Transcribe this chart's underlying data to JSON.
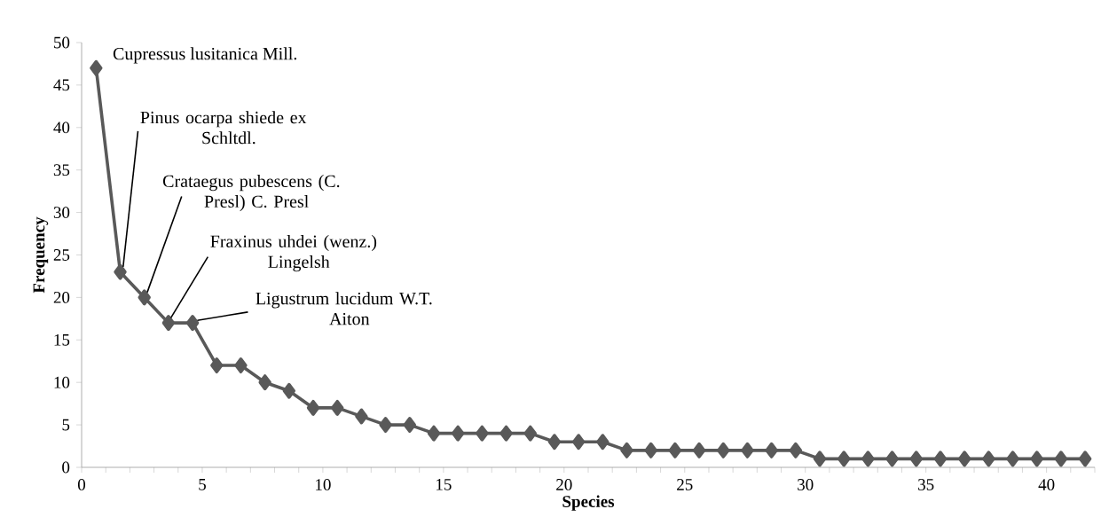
{
  "chart_data": {
    "type": "line",
    "xlabel": "Species",
    "ylabel": "Frequency",
    "color": "#595959",
    "marker": "diamond",
    "line_style": "solid",
    "x": [
      0.6,
      1.6,
      2.6,
      3.6,
      4.6,
      5.6,
      6.6,
      7.6,
      8.6,
      9.6,
      10.6,
      11.6,
      12.6,
      13.6,
      14.6,
      15.6,
      16.6,
      17.6,
      18.6,
      19.6,
      20.6,
      21.6,
      22.6,
      23.6,
      24.6,
      25.6,
      26.6,
      27.6,
      28.6,
      29.6,
      30.6,
      31.6,
      32.6,
      33.6,
      34.6,
      35.6,
      36.6,
      37.6,
      38.6,
      39.6,
      40.6,
      41.6
    ],
    "values": [
      47,
      23,
      20,
      17,
      17,
      12,
      12,
      10,
      9,
      7,
      7,
      6,
      5,
      5,
      4,
      4,
      4,
      4,
      4,
      3,
      3,
      3,
      2,
      2,
      2,
      2,
      2,
      2,
      2,
      2,
      1,
      1,
      1,
      1,
      1,
      1,
      1,
      1,
      1,
      1,
      1,
      1
    ],
    "xlim": [
      0,
      42
    ],
    "ylim": [
      0,
      50
    ],
    "xticks": [
      0,
      {
        "value": 1,
        "label": null
      },
      {
        "value": 2,
        "label": null
      },
      {
        "value": 3,
        "label": null
      },
      {
        "value": 4,
        "label": null
      },
      5,
      {
        "value": 6,
        "label": null
      },
      {
        "value": 7,
        "label": null
      },
      {
        "value": 8,
        "label": null
      },
      {
        "value": 9,
        "label": null
      },
      10,
      {
        "value": 11,
        "label": null
      },
      {
        "value": 12,
        "label": null
      },
      {
        "value": 13,
        "label": null
      },
      {
        "value": 14,
        "label": null
      },
      15,
      {
        "value": 16,
        "label": null
      },
      {
        "value": 17,
        "label": null
      },
      {
        "value": 18,
        "label": null
      },
      {
        "value": 19,
        "label": null
      },
      20,
      {
        "value": 21,
        "label": null
      },
      {
        "value": 22,
        "label": null
      },
      {
        "value": 23,
        "label": null
      },
      {
        "value": 24,
        "label": null
      },
      25,
      {
        "value": 26,
        "label": null
      },
      {
        "value": 27,
        "label": null
      },
      {
        "value": 28,
        "label": null
      },
      {
        "value": 29,
        "label": null
      },
      30,
      {
        "value": 31,
        "label": null
      },
      {
        "value": 32,
        "label": null
      },
      {
        "value": 33,
        "label": null
      },
      {
        "value": 34,
        "label": null
      },
      35,
      {
        "value": 36,
        "label": null
      },
      {
        "value": 37,
        "label": null
      },
      {
        "value": 38,
        "label": null
      },
      {
        "value": 39,
        "label": null
      },
      40,
      {
        "value": 41,
        "label": null
      },
      {
        "value": 42,
        "label": null
      }
    ],
    "yticks": [
      0,
      5,
      10,
      15,
      20,
      25,
      30,
      35,
      40,
      45,
      50
    ],
    "annotations": [
      {
        "text": "Cupressus lusitanica Mill.",
        "x": 0.6,
        "y": 47
      },
      {
        "text": "Pinus ocarpa shiede ex Schltdl.",
        "x": 1.6,
        "y": 23
      },
      {
        "text": "Crataegus pubescens (C. Presl) C. Presl",
        "x": 2.6,
        "y": 20
      },
      {
        "text": "Fraxinus uhdei (wenz.) Lingelsh",
        "x": 3.6,
        "y": 17
      },
      {
        "text": "Ligustrum lucidum W.T. Aiton",
        "x": 4.6,
        "y": 17
      }
    ]
  }
}
